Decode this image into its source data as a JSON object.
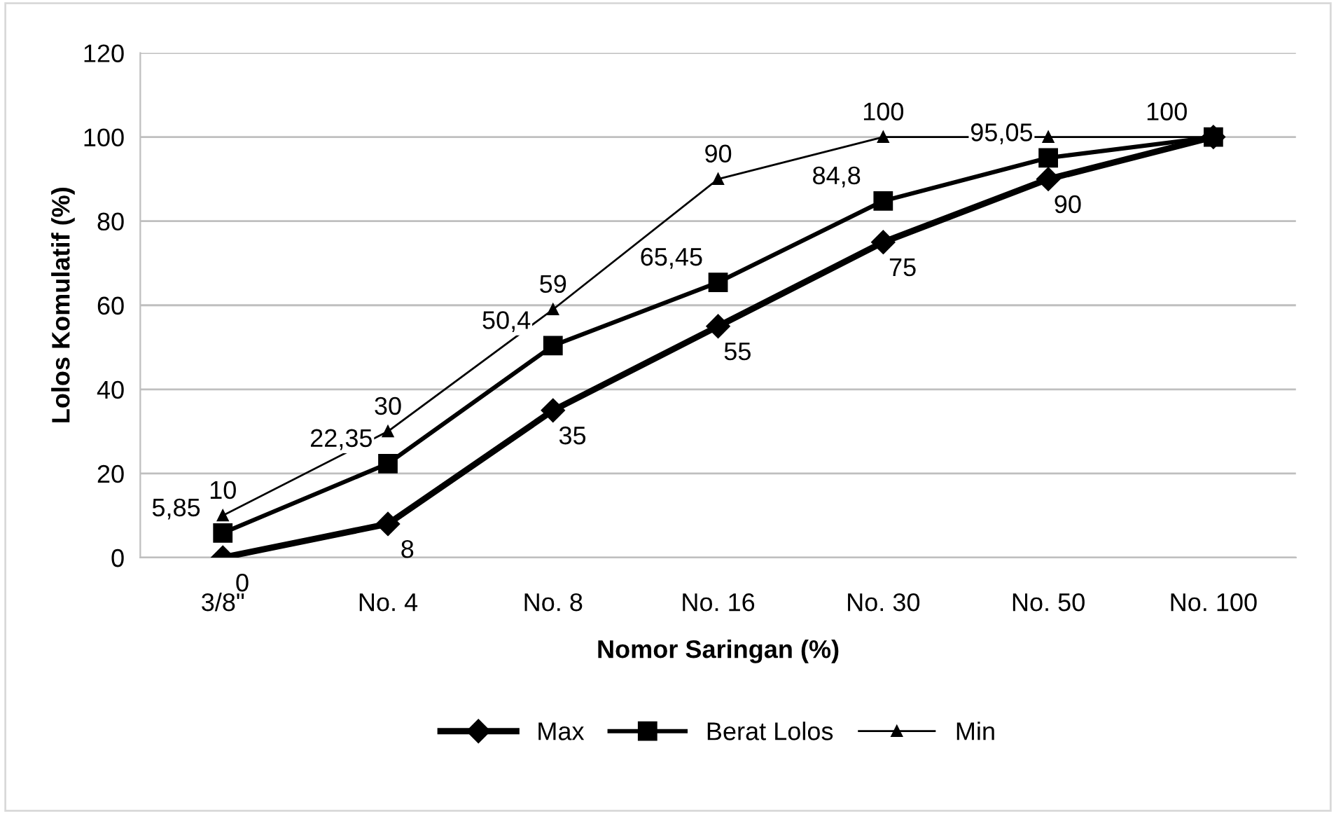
{
  "chart_data": {
    "type": "line",
    "xlabel": "Nomor Saringan (%)",
    "ylabel": "Lolos Komulatif (%)",
    "categories": [
      "3/8\"",
      "No. 4",
      "No. 8",
      "No. 16",
      "No. 30",
      "No. 50",
      "No. 100"
    ],
    "series": [
      {
        "name": "Max",
        "color": "#000000",
        "marker": "diamond",
        "values": [
          0,
          8,
          35,
          55,
          75,
          90,
          100
        ],
        "value_labels": [
          "0",
          "8",
          "35",
          "55",
          "75",
          "90",
          null
        ]
      },
      {
        "name": "Berat Lolos",
        "color": "#000000",
        "marker": "square",
        "values": [
          5.85,
          22.35,
          50.4,
          65.45,
          84.8,
          95.05,
          100
        ],
        "value_labels": [
          "5,85",
          "22,35",
          "50,4",
          "65,45",
          "84,8",
          "95,05",
          "100"
        ]
      },
      {
        "name": "Min",
        "color": "#000000",
        "marker": "triangle",
        "values": [
          10,
          30,
          59,
          90,
          100,
          100,
          100
        ],
        "value_labels": [
          "10",
          "30",
          "59",
          "90",
          "100",
          null,
          null
        ]
      }
    ],
    "ylim": [
      0,
      120
    ],
    "yticks": [
      0,
      20,
      40,
      60,
      80,
      100,
      120
    ],
    "grid": "y",
    "legend": "bottom",
    "line_style": "solid"
  }
}
